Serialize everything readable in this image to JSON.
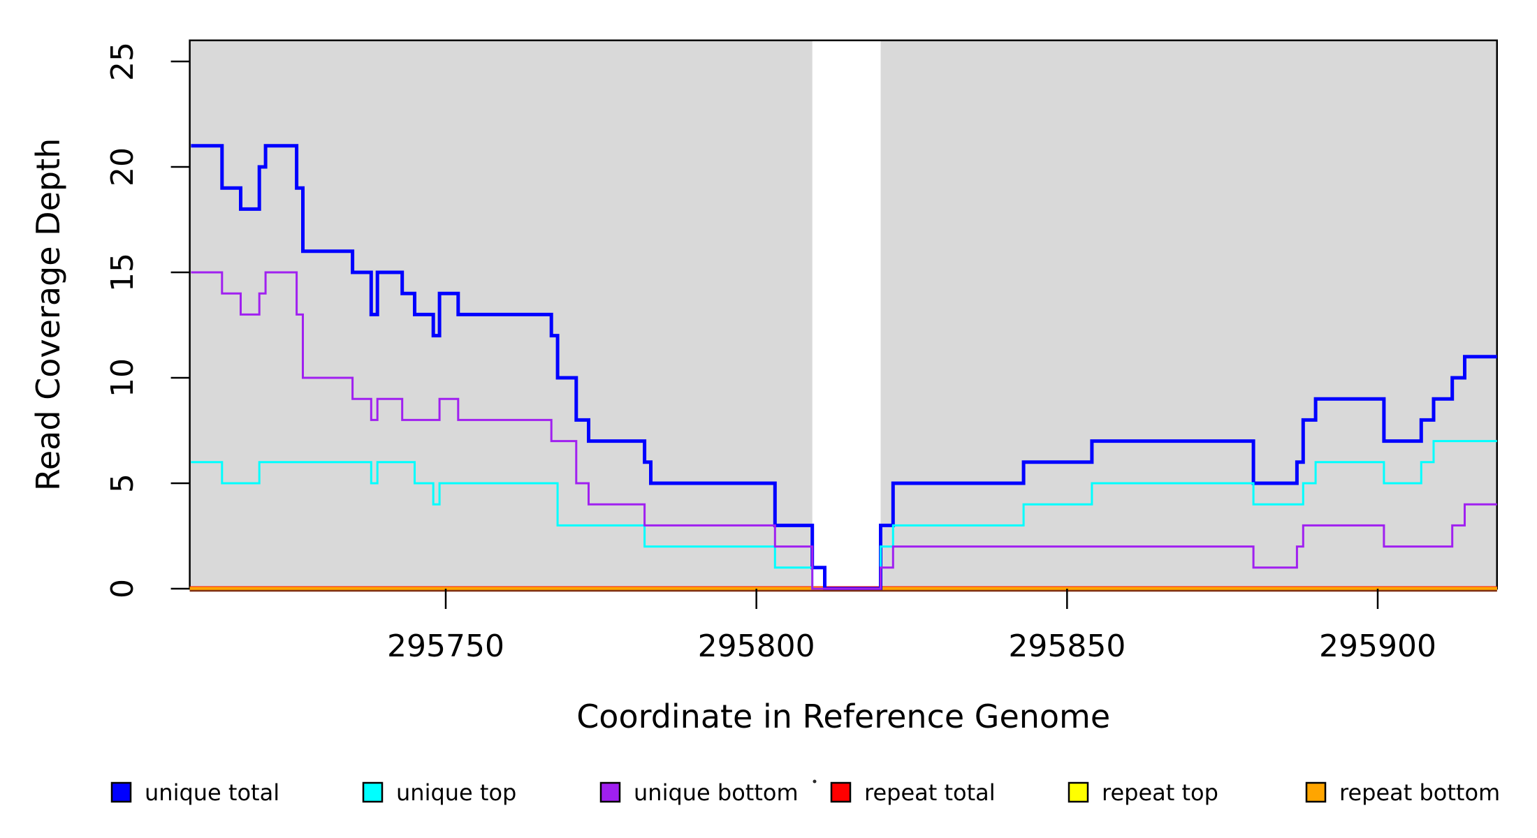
{
  "page": {
    "background": "#ffffff"
  },
  "chart_data": {
    "type": "line",
    "line_style": "step",
    "title": "",
    "xlabel": "Coordinate in Reference Genome",
    "ylabel": "Read Coverage Depth",
    "xlim": [
      295708.8,
      295919.2
    ],
    "ylim": [
      0,
      26
    ],
    "x_ticks": [
      295750,
      295800,
      295850,
      295900
    ],
    "x_tick_labels": [
      "295750",
      "295800",
      "295850",
      "295900"
    ],
    "y_ticks": [
      0,
      5,
      10,
      15,
      20,
      25
    ],
    "y_tick_labels": [
      "0",
      "5",
      "10",
      "15",
      "20",
      "25"
    ],
    "grid": false,
    "plot_background": {
      "shaded_color": "#d9d9d9",
      "shaded_regions": [
        [
          295708.8,
          295809
        ],
        [
          295820,
          295919.2
        ]
      ],
      "unshaded_gap": [
        295809,
        295820
      ],
      "border_color": "#000000"
    },
    "legend": {
      "position": "bottom",
      "entries": [
        {
          "label": "unique total",
          "color": "#0000ff",
          "border": "#000000"
        },
        {
          "label": "unique top",
          "color": "#00ffff",
          "border": "#000000"
        },
        {
          "label": "unique bottom",
          "color": "#a020f0",
          "border": "#000000"
        },
        {
          "label": "repeat total",
          "color": "#ff0000",
          "border": "#000000"
        },
        {
          "label": "repeat top",
          "color": "#ffff00",
          "border": "#000000"
        },
        {
          "label": "repeat bottom",
          "color": "#ffa500",
          "border": "#000000"
        }
      ]
    },
    "series": [
      {
        "name": "repeat total",
        "color": "#ff0000",
        "line_width": 7,
        "steps": [
          [
            295708.8,
            0
          ],
          [
            295919.2,
            0
          ]
        ]
      },
      {
        "name": "repeat top",
        "color": "#ffff00",
        "line_width": 5,
        "steps": [
          [
            295708.8,
            0
          ],
          [
            295919.2,
            0
          ]
        ]
      },
      {
        "name": "repeat bottom",
        "color": "#ffa500",
        "line_width": 4.5,
        "steps": [
          [
            295708.8,
            0
          ],
          [
            295919.2,
            0
          ]
        ]
      },
      {
        "name": "unique total",
        "color": "#0000ff",
        "line_width": 5,
        "steps": [
          [
            295709,
            21
          ],
          [
            295714,
            19
          ],
          [
            295717,
            18
          ],
          [
            295720,
            20
          ],
          [
            295721,
            21
          ],
          [
            295726,
            19
          ],
          [
            295727,
            16
          ],
          [
            295735,
            15
          ],
          [
            295738,
            13
          ],
          [
            295739,
            15
          ],
          [
            295743,
            14
          ],
          [
            295745,
            13
          ],
          [
            295748,
            12
          ],
          [
            295749,
            14
          ],
          [
            295752,
            13
          ],
          [
            295767,
            12
          ],
          [
            295768,
            10
          ],
          [
            295771,
            8
          ],
          [
            295773,
            7
          ],
          [
            295782,
            6
          ],
          [
            295783,
            5
          ],
          [
            295803,
            3
          ],
          [
            295809,
            1
          ],
          [
            295811,
            0
          ],
          [
            295820,
            3
          ],
          [
            295822,
            5
          ],
          [
            295843,
            6
          ],
          [
            295854,
            7
          ],
          [
            295880,
            5
          ],
          [
            295887,
            6
          ],
          [
            295888,
            8
          ],
          [
            295890,
            9
          ],
          [
            295901,
            7
          ],
          [
            295907,
            8
          ],
          [
            295909,
            9
          ],
          [
            295912,
            10
          ],
          [
            295914,
            11
          ],
          [
            295919.2,
            11
          ]
        ]
      },
      {
        "name": "unique top",
        "color": "#00ffff",
        "line_width": 3,
        "steps": [
          [
            295709,
            6
          ],
          [
            295714,
            5
          ],
          [
            295720,
            6
          ],
          [
            295738,
            5
          ],
          [
            295739,
            6
          ],
          [
            295745,
            5
          ],
          [
            295748,
            4
          ],
          [
            295749,
            5
          ],
          [
            295768,
            3
          ],
          [
            295782,
            2
          ],
          [
            295803,
            1
          ],
          [
            295809,
            0
          ],
          [
            295820,
            2
          ],
          [
            295822,
            3
          ],
          [
            295843,
            4
          ],
          [
            295854,
            5
          ],
          [
            295880,
            4
          ],
          [
            295888,
            5
          ],
          [
            295890,
            6
          ],
          [
            295901,
            5
          ],
          [
            295907,
            6
          ],
          [
            295909,
            7
          ],
          [
            295919.2,
            7
          ]
        ]
      },
      {
        "name": "unique bottom",
        "color": "#a020f0",
        "line_width": 3,
        "steps": [
          [
            295709,
            15
          ],
          [
            295714,
            14
          ],
          [
            295717,
            13
          ],
          [
            295720,
            14
          ],
          [
            295721,
            15
          ],
          [
            295726,
            13
          ],
          [
            295727,
            10
          ],
          [
            295735,
            9
          ],
          [
            295738,
            8
          ],
          [
            295739,
            9
          ],
          [
            295743,
            8
          ],
          [
            295749,
            9
          ],
          [
            295752,
            8
          ],
          [
            295767,
            7
          ],
          [
            295771,
            5
          ],
          [
            295773,
            4
          ],
          [
            295782,
            3
          ],
          [
            295803,
            2
          ],
          [
            295809,
            0
          ],
          [
            295820,
            1
          ],
          [
            295822,
            2
          ],
          [
            295880,
            1
          ],
          [
            295887,
            2
          ],
          [
            295888,
            3
          ],
          [
            295901,
            2
          ],
          [
            295912,
            3
          ],
          [
            295914,
            4
          ],
          [
            295919.2,
            4
          ]
        ]
      }
    ],
    "annotations": [
      {
        "type": "stray-dot",
        "color": "#2b2b2b"
      }
    ]
  }
}
